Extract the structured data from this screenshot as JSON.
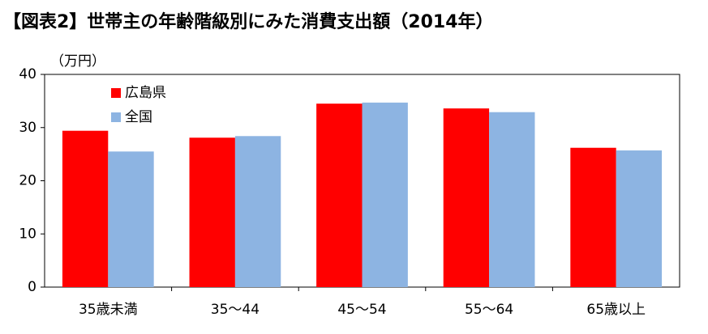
{
  "chart_data": {
    "type": "bar",
    "title": "【図表2】世帯主の年齢階級別にみた消費支出額（2014年）",
    "y_label": "（万円）",
    "categories": [
      "35歳未満",
      "35～44",
      "45～54",
      "55～64",
      "65歳以上"
    ],
    "series": [
      {
        "name": "広島県",
        "color": "#ff0000",
        "values": [
          29.4,
          28.1,
          34.5,
          33.6,
          26.2
        ]
      },
      {
        "name": "全国",
        "color": "#8db4e2",
        "values": [
          25.5,
          28.4,
          34.7,
          32.9,
          25.7
        ]
      }
    ],
    "ylim": [
      0,
      40
    ],
    "yticks": [
      0,
      10,
      20,
      30,
      40
    ],
    "grid": false,
    "legend": "upper left"
  }
}
